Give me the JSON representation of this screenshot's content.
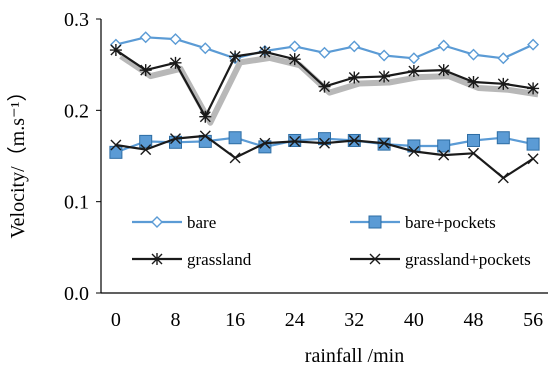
{
  "chart_data": {
    "type": "line",
    "xlabel": "rainfall /min",
    "ylabel": "Velocity/（m.s⁻¹）",
    "x_ticks": [
      "0",
      "8",
      "16",
      "24",
      "32",
      "40",
      "48",
      "56"
    ],
    "y_ticks": [
      "0.0",
      "0.1",
      "0.2",
      "0.3"
    ],
    "xlim": [
      -2,
      58
    ],
    "ylim": [
      0,
      0.3
    ],
    "grid": false,
    "legend_position": "bottom (inside plot, 2 columns)",
    "x": [
      0,
      4,
      8,
      12,
      16,
      20,
      24,
      28,
      32,
      36,
      40,
      44,
      48,
      52,
      56
    ],
    "series": [
      {
        "name": "bare",
        "color": "#5b9bd5",
        "marker": "diamond",
        "values": [
          0.272,
          0.28,
          0.278,
          0.268,
          0.257,
          0.265,
          0.27,
          0.263,
          0.27,
          0.26,
          0.257,
          0.271,
          0.261,
          0.257,
          0.272
        ]
      },
      {
        "name": "bare+pockets",
        "color": "#5b9bd5",
        "marker": "square",
        "values": [
          0.154,
          0.166,
          0.165,
          0.166,
          0.17,
          0.16,
          0.167,
          0.169,
          0.167,
          0.163,
          0.161,
          0.161,
          0.167,
          0.17,
          0.163
        ]
      },
      {
        "name": "grassland",
        "color": "#1a1a1a",
        "marker": "asterisk",
        "values": [
          0.266,
          0.244,
          0.252,
          0.193,
          0.259,
          0.264,
          0.256,
          0.226,
          0.236,
          0.237,
          0.243,
          0.244,
          0.231,
          0.229,
          0.224
        ]
      },
      {
        "name": "grassland+pockets",
        "color": "#1a1a1a",
        "marker": "x",
        "values": [
          0.162,
          0.157,
          0.169,
          0.172,
          0.148,
          0.164,
          0.166,
          0.164,
          0.167,
          0.164,
          0.155,
          0.151,
          0.153,
          0.126,
          0.147
        ]
      }
    ]
  }
}
